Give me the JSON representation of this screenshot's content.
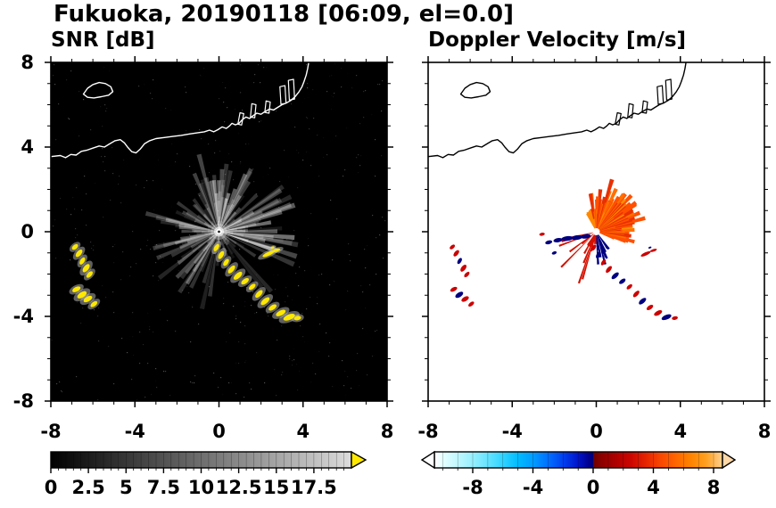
{
  "title": "Fukuoka, 20190118 [06:09, el=0.0]",
  "chart_data": {
    "type": "heatmap",
    "subtype": "doppler-weather-radar-ppi-two-panel",
    "x": {
      "min": -8,
      "max": 8,
      "major_ticks": [
        -8,
        -4,
        0,
        4,
        8
      ],
      "minor_step": 1
    },
    "y": {
      "min": -8,
      "max": 8,
      "major_ticks": [
        8,
        4,
        0,
        -4,
        -8
      ],
      "minor_step": 1
    },
    "panels": [
      {
        "id": "snr",
        "title": "SNR [dB]",
        "background": "#000000",
        "coast_color": "#ffffff",
        "radar_center": [
          0,
          0
        ],
        "echo_color": "#ffe800",
        "colorbar": {
          "labels": [
            "0",
            "2.5",
            "5",
            "7.5",
            "10",
            "12.5",
            "15",
            "17.5"
          ],
          "values": [
            0,
            2.5,
            5,
            7.5,
            10,
            12.5,
            15,
            17.5
          ],
          "bar_range": [
            0,
            20
          ],
          "segment_step": 0.5,
          "gradient_stops": [
            [
              0,
              "#000000"
            ],
            [
              20,
              "#dcdcdc"
            ]
          ],
          "over_arrow_color": "#ffe800"
        },
        "streaks": {
          "seed": 7,
          "base_count": 150,
          "bright_sector_deg": [
            -25,
            105
          ],
          "bright_count": 46,
          "sw_sector_deg": [
            148,
            242
          ],
          "sw_count": 20
        },
        "noise_dots": 450
      },
      {
        "id": "doppler",
        "title": "Doppler Velocity [m/s]",
        "background": "#ffffff",
        "coast_color": "#000000",
        "positive_color": "#cc0000",
        "negative_color": "#000080",
        "colorbar": {
          "labels": [
            "-8",
            "-4",
            "0",
            "4",
            "8"
          ],
          "values": [
            -8,
            -4,
            0,
            4,
            8
          ],
          "bar_range": [
            -10.55,
            8.59
          ],
          "segment_step": 1,
          "gradient_stops": [
            [
              -10.55,
              "#ffffff"
            ],
            [
              -10,
              "#e6ffff"
            ],
            [
              -9,
              "#c0f8ff"
            ],
            [
              -8,
              "#96f0ff"
            ],
            [
              -7,
              "#66e4ff"
            ],
            [
              -6,
              "#30d4ff"
            ],
            [
              -5,
              "#00bcff"
            ],
            [
              -4,
              "#009cff"
            ],
            [
              -3,
              "#0070ff"
            ],
            [
              -2,
              "#0040f0"
            ],
            [
              -1,
              "#0014cc"
            ],
            [
              -0.3,
              "#000090"
            ],
            [
              0,
              "#000080"
            ],
            [
              0.01,
              "#6e0000"
            ],
            [
              0.5,
              "#8a0000"
            ],
            [
              1.5,
              "#ae0000"
            ],
            [
              2.5,
              "#cc0600"
            ],
            [
              3.5,
              "#e62400"
            ],
            [
              4.5,
              "#f84800"
            ],
            [
              5.5,
              "#ff6600"
            ],
            [
              6.5,
              "#ff8400"
            ],
            [
              7.5,
              "#ffa020"
            ],
            [
              8.59,
              "#ffd090"
            ]
          ],
          "under_arrow_color": "#ffffff",
          "over_arrow_color": "#ffd8a8"
        },
        "fan": {
          "seed": 11,
          "azimuth_deg": [
            -18,
            102
          ],
          "solid_radius": 0.9,
          "colors": [
            "#e83000",
            "#ff5000",
            "#ff7000",
            "#ff9000"
          ]
        },
        "nnw_spikes": {
          "azimuth_deg": [
            100,
            118
          ],
          "count": 6,
          "color": "#ff8800"
        },
        "south_red_spikes": {
          "azimuth_deg": [
            192,
            256
          ],
          "count": 11,
          "max_radius": 2.6,
          "color": "#d41000"
        },
        "sse_navy_spikes": {
          "azimuth_deg": [
            270,
            306
          ],
          "count": 13,
          "max_radius": 1.9,
          "color": "#000080"
        },
        "west_navy_bar": [
          [
            -0.5,
            -0.22,
            0.24,
            0.1,
            -8
          ],
          [
            -0.92,
            -0.28,
            0.26,
            0.11,
            -8
          ],
          [
            -1.38,
            -0.32,
            0.28,
            0.11,
            -6
          ],
          [
            -1.82,
            -0.4,
            0.22,
            0.1,
            -10
          ],
          [
            -2.26,
            -0.5,
            0.17,
            0.09,
            -14
          ],
          [
            -2.0,
            -1.0,
            0.12,
            0.07,
            -20
          ]
        ],
        "west_red_speck": [
          -2.58,
          -0.12,
          0.13,
          0.07,
          -10
        ]
      }
    ],
    "coastline": {
      "main": [
        [
          -8,
          3.55
        ],
        [
          -7.55,
          3.6
        ],
        [
          -7.3,
          3.5
        ],
        [
          -7.05,
          3.65
        ],
        [
          -6.8,
          3.62
        ],
        [
          -6.55,
          3.8
        ],
        [
          -6.3,
          3.85
        ],
        [
          -6,
          3.95
        ],
        [
          -5.7,
          4.05
        ],
        [
          -5.45,
          4
        ],
        [
          -5.2,
          4.15
        ],
        [
          -4.95,
          4.3
        ],
        [
          -4.7,
          4.35
        ],
        [
          -4.5,
          4.2
        ],
        [
          -4.35,
          4
        ],
        [
          -4.15,
          3.78
        ],
        [
          -3.95,
          3.72
        ],
        [
          -3.75,
          3.9
        ],
        [
          -3.55,
          4.15
        ],
        [
          -3.3,
          4.3
        ],
        [
          -3,
          4.4
        ],
        [
          -2.6,
          4.45
        ],
        [
          -2.2,
          4.5
        ],
        [
          -1.8,
          4.55
        ],
        [
          -1.4,
          4.62
        ],
        [
          -1,
          4.68
        ],
        [
          -0.7,
          4.72
        ],
        [
          -0.45,
          4.8
        ],
        [
          -0.25,
          4.72
        ],
        [
          -0.05,
          4.82
        ],
        [
          0.15,
          4.95
        ],
        [
          0.35,
          4.88
        ],
        [
          0.5,
          5
        ],
        [
          0.62,
          5.12
        ],
        [
          0.78,
          5.05
        ],
        [
          0.95,
          5.12
        ],
        [
          1.1,
          5.28
        ],
        [
          1.28,
          5.42
        ],
        [
          1.45,
          5.35
        ],
        [
          1.62,
          5.48
        ],
        [
          1.8,
          5.6
        ],
        [
          2,
          5.55
        ],
        [
          2.2,
          5.68
        ],
        [
          2.42,
          5.8
        ],
        [
          2.6,
          5.75
        ],
        [
          2.8,
          5.88
        ],
        [
          3,
          6
        ],
        [
          3.2,
          6.08
        ],
        [
          3.42,
          6.2
        ],
        [
          3.62,
          6.38
        ],
        [
          3.8,
          6.6
        ],
        [
          3.95,
          6.85
        ],
        [
          4.05,
          7.1
        ],
        [
          4.15,
          7.4
        ],
        [
          4.22,
          7.7
        ],
        [
          4.28,
          8.05
        ]
      ],
      "island": [
        [
          -6.45,
          6.5
        ],
        [
          -6.25,
          6.78
        ],
        [
          -6,
          6.95
        ],
        [
          -5.7,
          7.05
        ],
        [
          -5.4,
          7
        ],
        [
          -5.15,
          6.85
        ],
        [
          -5.05,
          6.62
        ],
        [
          -5.25,
          6.45
        ],
        [
          -5.6,
          6.38
        ],
        [
          -5.95,
          6.32
        ],
        [
          -6.25,
          6.35
        ]
      ],
      "piers": [
        [
          [
            0.9,
            5.08
          ],
          [
            1,
            5.62
          ],
          [
            1.18,
            5.58
          ],
          [
            1.08,
            5.04
          ]
        ],
        [
          [
            1.5,
            5.42
          ],
          [
            1.56,
            6.05
          ],
          [
            1.76,
            6
          ],
          [
            1.7,
            5.38
          ]
        ],
        [
          [
            2.18,
            5.64
          ],
          [
            2.24,
            6.18
          ],
          [
            2.44,
            6.13
          ],
          [
            2.38,
            5.6
          ]
        ],
        [
          [
            2.95,
            6.02
          ],
          [
            2.9,
            6.85
          ],
          [
            3.14,
            6.9
          ],
          [
            3.19,
            6.07
          ]
        ],
        [
          [
            3.35,
            6.22
          ],
          [
            3.3,
            7.15
          ],
          [
            3.55,
            7.2
          ],
          [
            3.6,
            6.27
          ]
        ]
      ]
    },
    "echoes": {
      "west_clusters": [
        [
          -6.85,
          -0.72,
          0.17,
          0.1,
          -40
        ],
        [
          -6.66,
          -1.02,
          0.21,
          0.11,
          -50
        ],
        [
          -6.5,
          -1.38,
          0.19,
          0.1,
          -58
        ],
        [
          -6.32,
          -1.72,
          0.23,
          0.12,
          -52
        ],
        [
          -6.16,
          -2.02,
          0.19,
          0.1,
          -46
        ],
        [
          -6.78,
          -2.72,
          0.21,
          0.11,
          -28
        ],
        [
          -6.52,
          -2.98,
          0.25,
          0.13,
          -33
        ],
        [
          -6.24,
          -3.18,
          0.23,
          0.12,
          -30
        ],
        [
          -5.95,
          -3.42,
          0.19,
          0.1,
          -38
        ]
      ],
      "west_navy_indices": [
        2,
        6
      ],
      "south_chain": [
        [
          -0.12,
          -0.75,
          0.19,
          0.1,
          -58
        ],
        [
          0.1,
          -1.1,
          0.21,
          0.11,
          -60
        ],
        [
          0.34,
          -1.45,
          0.19,
          0.1,
          -55
        ],
        [
          0.6,
          -1.78,
          0.23,
          0.11,
          -50
        ],
        [
          0.9,
          -2.08,
          0.25,
          0.12,
          -42
        ],
        [
          1.24,
          -2.34,
          0.21,
          0.11,
          -36
        ],
        [
          1.58,
          -2.6,
          0.19,
          0.1,
          -40
        ],
        [
          1.9,
          -2.94,
          0.23,
          0.11,
          -46
        ],
        [
          2.2,
          -3.28,
          0.25,
          0.12,
          -40
        ],
        [
          2.55,
          -3.58,
          0.21,
          0.11,
          -34
        ],
        [
          2.94,
          -3.84,
          0.25,
          0.12,
          -28
        ],
        [
          3.34,
          -4.04,
          0.29,
          0.13,
          -22
        ],
        [
          3.74,
          -4.08,
          0.17,
          0.1,
          -12
        ]
      ],
      "chain_navy_indices": [
        1,
        4,
        5,
        8,
        11
      ],
      "ne_dashes": [
        [
          2.35,
          -1.05,
          0.3,
          0.09,
          -25
        ],
        [
          2.72,
          -0.88,
          0.2,
          0.07,
          -18
        ],
        [
          2.55,
          -0.75,
          0.09,
          0.05,
          -20
        ]
      ],
      "ne_navy_indices": [
        2
      ]
    }
  }
}
